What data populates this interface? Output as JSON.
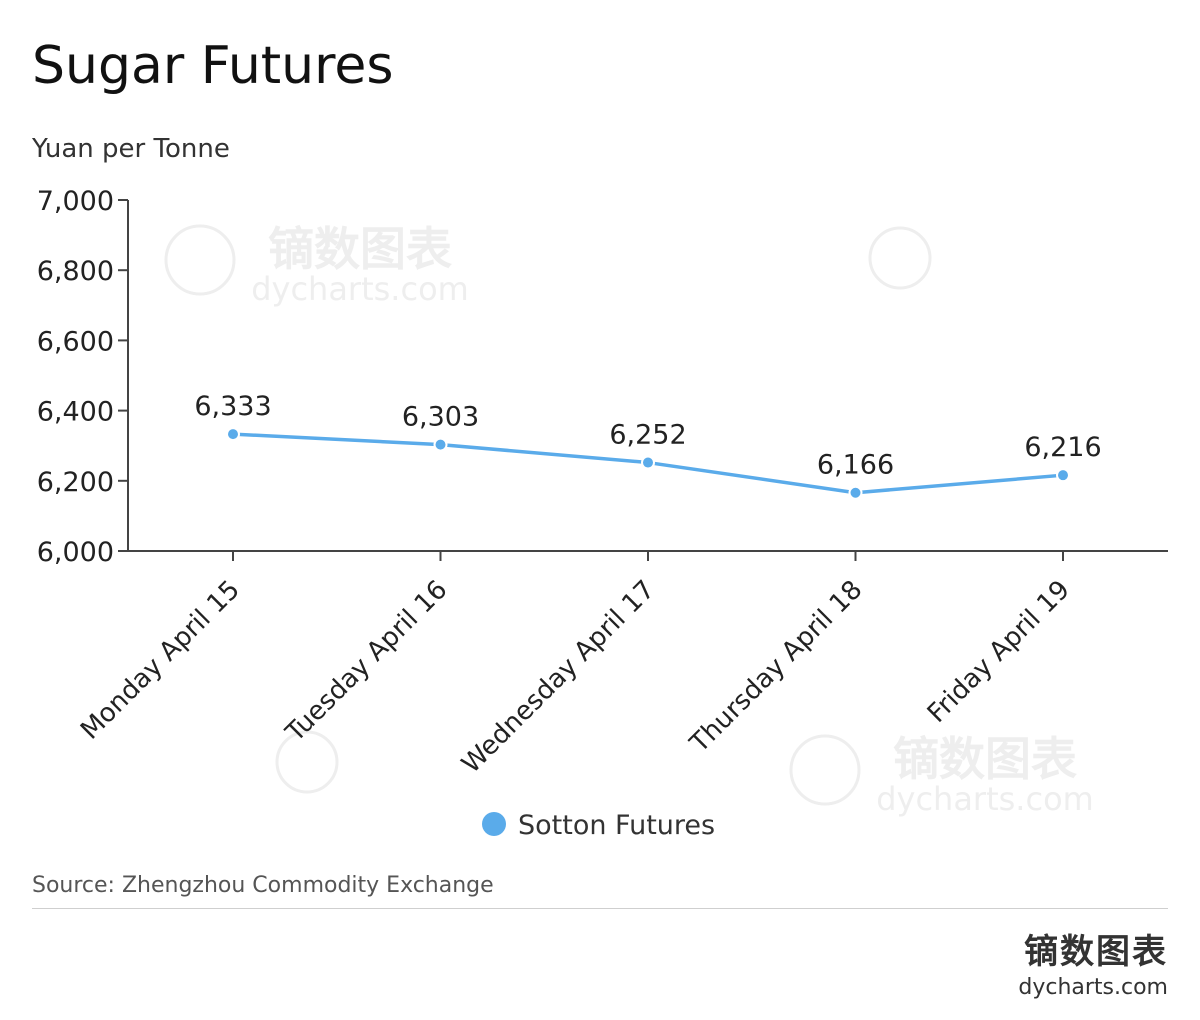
{
  "header": {
    "title": "Sugar Futures",
    "subtitle": "Yuan per Tonne"
  },
  "footer": {
    "source": "Source: Zhengzhou Commodity Exchange",
    "brand_cn": "镝数图表",
    "brand_en": "dycharts.com"
  },
  "watermark": {
    "cn": "镝数图表",
    "en": "dycharts.com"
  },
  "chart_data": {
    "type": "line",
    "title": "Sugar Futures",
    "ylabel": "Yuan per Tonne",
    "categories": [
      "Monday April 15",
      "Tuesday April 16",
      "Wednesday April 17",
      "Thursday April 18",
      "Friday April 19"
    ],
    "series": [
      {
        "name": "Sotton Futures",
        "values": [
          6333,
          6303,
          6252,
          6166,
          6216
        ],
        "color": "#5aabea"
      }
    ],
    "ylim": [
      6000,
      7000
    ],
    "yticks": [
      6000,
      6200,
      6400,
      6600,
      6800,
      7000
    ],
    "ytick_labels": [
      "6,000",
      "6,200",
      "6,400",
      "6,600",
      "6,800",
      "7,000"
    ],
    "data_labels": [
      "6,333",
      "6,303",
      "6,252",
      "6,166",
      "6,216"
    ],
    "grid": false,
    "legend": "bottom-center",
    "axis_color": "#444444"
  }
}
